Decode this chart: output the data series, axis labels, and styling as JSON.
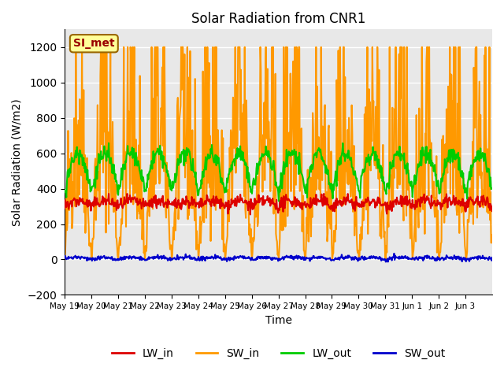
{
  "title": "Solar Radiation from CNR1",
  "xlabel": "Time",
  "ylabel": "Solar Radiation (W/m2)",
  "ylim": [
    -200,
    1300
  ],
  "yticks": [
    -200,
    0,
    200,
    400,
    600,
    800,
    1000,
    1200
  ],
  "background_color": "#ffffff",
  "plot_bg_color": "#e8e8e8",
  "grid_color": "#ffffff",
  "legend_label": "SI_met",
  "legend_text_color": "#990000",
  "legend_bg": "#ffff99",
  "legend_border": "#996600",
  "series": {
    "LW_in": {
      "color": "#dd0000",
      "lw": 1.5
    },
    "SW_in": {
      "color": "#ff9900",
      "lw": 1.5
    },
    "LW_out": {
      "color": "#00cc00",
      "lw": 1.5
    },
    "SW_out": {
      "color": "#0000cc",
      "lw": 1.5
    }
  },
  "xticklabels": [
    "May 19",
    "May 20",
    "May 21",
    "May 22",
    "May 23",
    "May 24",
    "May 25",
    "May 26",
    "May 27",
    "May 28",
    "May 29",
    "May 30",
    "May 31",
    "Jun 1",
    "Jun 2",
    "Jun 3"
  ],
  "xtick_positions": [
    0,
    1,
    2,
    3,
    4,
    5,
    6,
    7,
    8,
    9,
    10,
    11,
    12,
    13,
    14,
    15
  ],
  "n_days": 16,
  "pts_per_day": 48
}
